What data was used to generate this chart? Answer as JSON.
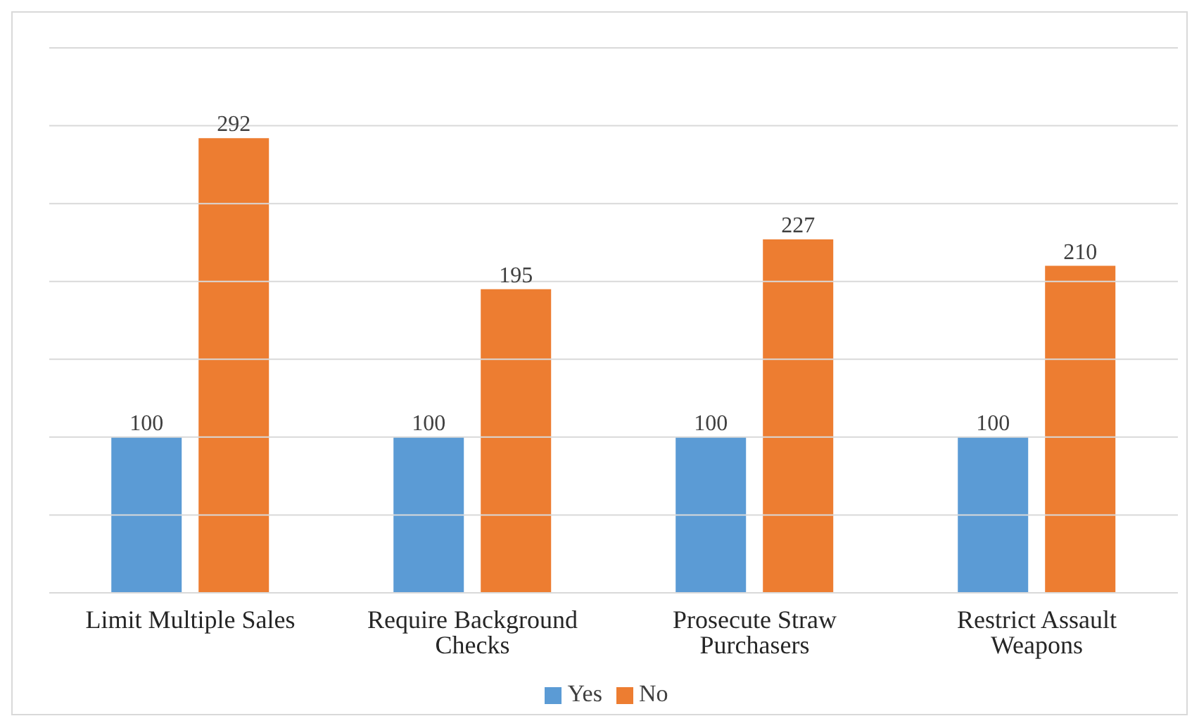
{
  "chart_data": {
    "type": "bar",
    "categories": [
      "Limit Multiple Sales",
      "Require Background Checks",
      "Prosecute Straw Purchasers",
      "Restrict Assault Weapons"
    ],
    "series": [
      {
        "name": "Yes",
        "color": "#5b9bd5",
        "values": [
          100,
          100,
          100,
          100
        ]
      },
      {
        "name": "No",
        "color": "#ed7d31",
        "values": [
          292,
          195,
          227,
          210
        ]
      }
    ],
    "ylim": [
      0,
      350
    ],
    "yticks": [
      {
        "value": 0,
        "label": null
      },
      {
        "value": 50,
        "label": null
      },
      {
        "value": 100,
        "label": null
      },
      {
        "value": 150,
        "label": null
      },
      {
        "value": 200,
        "label": null
      },
      {
        "value": 250,
        "label": null
      },
      {
        "value": 300,
        "label": null
      },
      {
        "value": 350,
        "label": null
      }
    ],
    "grid": "y",
    "tick_labels": "x",
    "data_labels": true,
    "legend": "bottom"
  }
}
